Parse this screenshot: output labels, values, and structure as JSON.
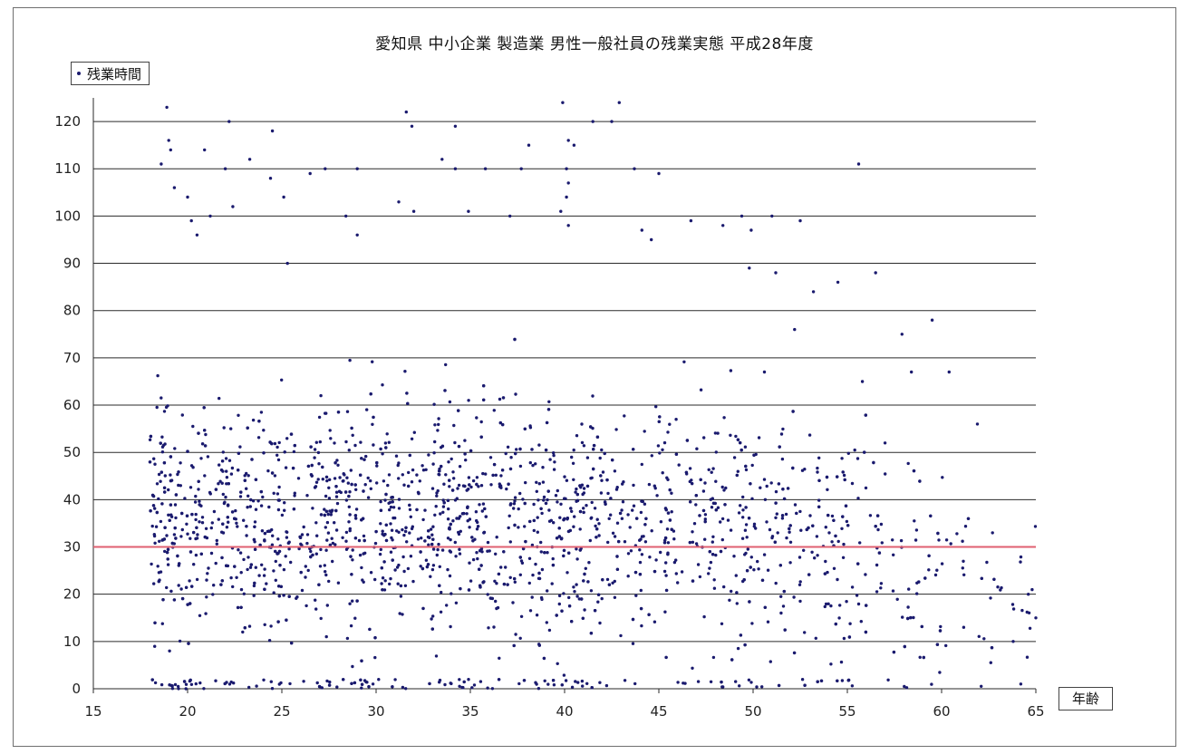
{
  "chart_data": {
    "type": "scatter",
    "title": "愛知県 中小企業 製造業 男性一般社員の残業実態 平成28年度",
    "legend": {
      "label": "残業時間",
      "placement": "top-left"
    },
    "xlabel": "年齢",
    "ylabel": "",
    "xlim": [
      15,
      65
    ],
    "ylim": [
      0,
      125
    ],
    "x_ticks": [
      15,
      20,
      25,
      30,
      35,
      40,
      45,
      50,
      55,
      60,
      65
    ],
    "y_ticks": [
      0,
      10,
      20,
      30,
      40,
      50,
      60,
      70,
      80,
      90,
      100,
      110,
      120
    ],
    "grid": "horizontal",
    "reference_line": {
      "y": 30,
      "color": "#e06070"
    },
    "marker_color": "#1a1a6e",
    "series": [
      {
        "name": "残業時間",
        "points": [
          [
            18.9,
            123
          ],
          [
            19.0,
            116
          ],
          [
            19.1,
            114
          ],
          [
            18.6,
            111
          ],
          [
            19.3,
            106
          ],
          [
            20.9,
            114
          ],
          [
            22.2,
            120
          ],
          [
            24.5,
            118
          ],
          [
            24.4,
            108
          ],
          [
            25.1,
            104
          ],
          [
            26.5,
            109
          ],
          [
            27.3,
            110
          ],
          [
            29.0,
            110
          ],
          [
            31.6,
            122
          ],
          [
            31.9,
            119
          ],
          [
            33.5,
            112
          ],
          [
            34.2,
            119
          ],
          [
            34.2,
            110
          ],
          [
            35.8,
            110
          ],
          [
            37.7,
            110
          ],
          [
            38.1,
            115
          ],
          [
            39.9,
            124
          ],
          [
            40.2,
            116
          ],
          [
            40.5,
            115
          ],
          [
            40.1,
            110
          ],
          [
            40.2,
            107
          ],
          [
            40.1,
            104
          ],
          [
            41.5,
            120
          ],
          [
            42.5,
            120
          ],
          [
            42.9,
            124
          ],
          [
            43.7,
            110
          ],
          [
            45.0,
            109
          ],
          [
            55.6,
            111
          ],
          [
            20.0,
            104
          ],
          [
            20.2,
            99
          ],
          [
            20.5,
            96
          ],
          [
            21.2,
            100
          ],
          [
            22.0,
            110
          ],
          [
            22.4,
            102
          ],
          [
            23.3,
            112
          ],
          [
            25.3,
            90
          ],
          [
            28.4,
            100
          ],
          [
            29.0,
            96
          ],
          [
            31.2,
            103
          ],
          [
            32.0,
            101
          ],
          [
            34.9,
            101
          ],
          [
            37.1,
            100
          ],
          [
            39.8,
            101
          ],
          [
            40.2,
            98
          ],
          [
            44.1,
            97
          ],
          [
            44.6,
            95
          ],
          [
            46.7,
            99
          ],
          [
            48.4,
            98
          ],
          [
            49.4,
            100
          ],
          [
            49.9,
            97
          ],
          [
            51.0,
            100
          ],
          [
            52.5,
            99
          ],
          [
            56.5,
            88
          ],
          [
            59.5,
            78
          ],
          [
            60.4,
            67
          ],
          [
            61.9,
            56
          ],
          [
            62.7,
            33
          ],
          [
            64.6,
            20
          ],
          [
            65.0,
            15
          ],
          [
            64.2,
            1
          ],
          [
            63.8,
            10
          ],
          [
            58.4,
            67
          ],
          [
            57.9,
            75
          ],
          [
            57.0,
            52
          ],
          [
            55.8,
            65
          ],
          [
            54.5,
            86
          ],
          [
            53.2,
            84
          ],
          [
            52.2,
            76
          ],
          [
            51.2,
            88
          ],
          [
            50.6,
            67
          ],
          [
            49.8,
            89
          ]
        ]
      }
    ]
  }
}
